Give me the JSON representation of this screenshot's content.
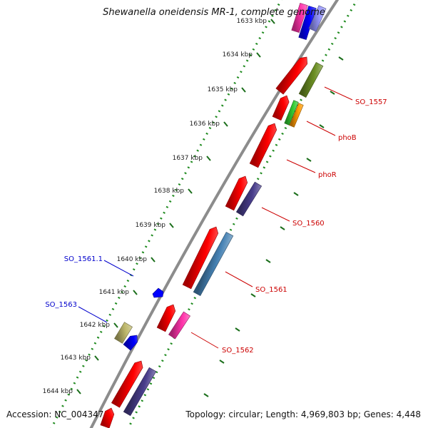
{
  "title": "Shewanella oneidensis MR-1, complete genome",
  "footer": {
    "accession": "Accession: NC_004347",
    "stats": "Topology: circular; Length: 4,969,803 bp; Genes: 4,448"
  },
  "ticks": [
    "1633 kbp",
    "1634 kbp",
    "1635 kbp",
    "1636 kbp",
    "1637 kbp",
    "1638 kbp",
    "1639 kbp",
    "1640 kbp",
    "1641 kbp",
    "1642 kbp",
    "1643 kbp",
    "1644 kbp"
  ],
  "gene_labels": [
    {
      "text": "SO_1557",
      "color": "#cc0000"
    },
    {
      "text": "phoB",
      "color": "#cc0000"
    },
    {
      "text": "phoR",
      "color": "#cc0000"
    },
    {
      "text": "SO_1560",
      "color": "#cc0000"
    },
    {
      "text": "SO_1561",
      "color": "#cc0000"
    },
    {
      "text": "SO_1562",
      "color": "#cc0000"
    },
    {
      "text": "SO_1561.1",
      "color": "#0000cc"
    },
    {
      "text": "SO_1563",
      "color": "#0000cc"
    }
  ],
  "colors": {
    "backbone": "#8c8c8c",
    "dotted_ring": "#1e8a1e",
    "tick_text": "#222222",
    "cds": "#ff0000",
    "olive": "#6b8e23",
    "green": "#33cc33",
    "orange": "#ff9900",
    "navy": "#483d8b",
    "steelblue": "#4682b4",
    "pink": "#ff33aa",
    "khaki": "#bdb76b",
    "blue": "#0000ff",
    "violet": "#9999ff"
  }
}
